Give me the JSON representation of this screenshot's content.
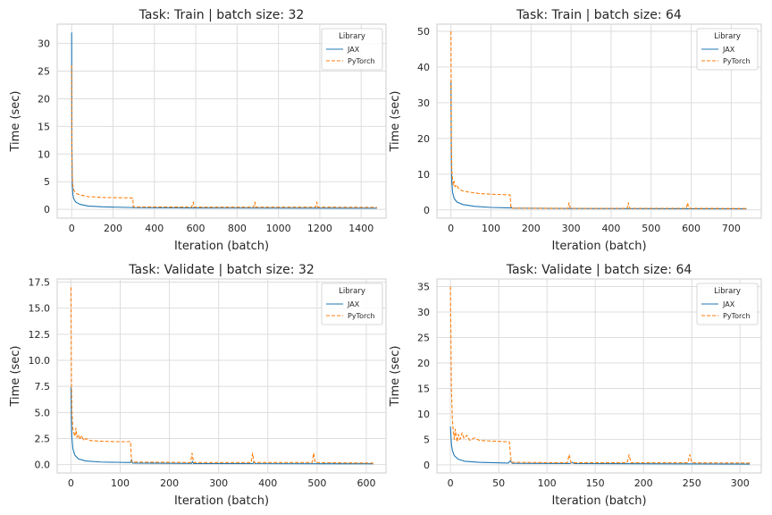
{
  "chart_data": [
    {
      "type": "line",
      "title": "Task: Train | batch size: 32",
      "xlabel": "Iteration (batch)",
      "ylabel": "Time (sec)",
      "xlim": [
        -70,
        1520
      ],
      "ylim": [
        -1.6,
        33.5
      ],
      "xticks": [
        0,
        200,
        400,
        600,
        800,
        1000,
        1200,
        1400
      ],
      "yticks": [
        0,
        5,
        10,
        15,
        20,
        25,
        30
      ],
      "grid": true,
      "legend": {
        "title": "Library",
        "position": "top-right"
      },
      "series": [
        {
          "name": "JAX",
          "color": "#1f77b4",
          "dash": "solid",
          "points": [
            [
              0,
              32
            ],
            [
              1,
              12
            ],
            [
              3,
              4.5
            ],
            [
              6,
              2.6
            ],
            [
              10,
              1.9
            ],
            [
              20,
              1.3
            ],
            [
              40,
              0.9
            ],
            [
              80,
              0.6
            ],
            [
              150,
              0.45
            ],
            [
              295,
              0.32
            ],
            [
              297,
              0.5
            ],
            [
              299,
              0.3
            ],
            [
              600,
              0.25
            ],
            [
              1476,
              0.2
            ]
          ]
        },
        {
          "name": "PyTorch",
          "color": "#ff7f0e",
          "dash": "dashed",
          "points": [
            [
              0,
              26
            ],
            [
              1,
              10
            ],
            [
              3,
              6
            ],
            [
              6,
              4.2
            ],
            [
              10,
              3.5
            ],
            [
              20,
              2.9
            ],
            [
              40,
              2.6
            ],
            [
              80,
              2.3
            ],
            [
              150,
              2.15
            ],
            [
              296,
              2.05
            ],
            [
              298,
              0.45
            ],
            [
              580,
              0.4
            ],
            [
              588,
              1.3
            ],
            [
              592,
              0.4
            ],
            [
              880,
              0.4
            ],
            [
              886,
              1.3
            ],
            [
              890,
              0.4
            ],
            [
              1180,
              0.4
            ],
            [
              1186,
              1.3
            ],
            [
              1190,
              0.4
            ],
            [
              1476,
              0.35
            ]
          ]
        }
      ]
    },
    {
      "type": "line",
      "title": "Task: Train | batch size: 64",
      "xlabel": "Iteration (batch)",
      "ylabel": "Time (sec)",
      "xlim": [
        -35,
        775
      ],
      "ylim": [
        -2.3,
        52
      ],
      "xticks": [
        0,
        100,
        200,
        300,
        400,
        500,
        600,
        700
      ],
      "yticks": [
        0,
        10,
        20,
        30,
        40,
        50
      ],
      "grid": true,
      "legend": {
        "title": "Library",
        "position": "top-right"
      },
      "series": [
        {
          "name": "JAX",
          "color": "#1f77b4",
          "dash": "solid",
          "points": [
            [
              0,
              36
            ],
            [
              1,
              15
            ],
            [
              2,
              8
            ],
            [
              4,
              5
            ],
            [
              8,
              3.2
            ],
            [
              15,
              2.2
            ],
            [
              30,
              1.5
            ],
            [
              60,
              1.0
            ],
            [
              100,
              0.7
            ],
            [
              148,
              0.55
            ],
            [
              150,
              0.9
            ],
            [
              152,
              0.5
            ],
            [
              300,
              0.4
            ],
            [
              738,
              0.3
            ]
          ]
        },
        {
          "name": "PyTorch",
          "color": "#ff7f0e",
          "dash": "dashed",
          "points": [
            [
              0,
              50
            ],
            [
              1,
              20
            ],
            [
              2,
              11
            ],
            [
              4,
              8.5
            ],
            [
              6,
              7
            ],
            [
              8,
              8
            ],
            [
              10,
              6.5
            ],
            [
              14,
              7
            ],
            [
              20,
              5.8
            ],
            [
              30,
              5.3
            ],
            [
              45,
              5
            ],
            [
              70,
              4.6
            ],
            [
              100,
              4.4
            ],
            [
              148,
              4.2
            ],
            [
              150,
              0.5
            ],
            [
              292,
              0.45
            ],
            [
              295,
              2
            ],
            [
              298,
              0.45
            ],
            [
              440,
              0.45
            ],
            [
              443,
              2
            ],
            [
              446,
              0.45
            ],
            [
              588,
              0.45
            ],
            [
              591,
              2
            ],
            [
              594,
              0.45
            ],
            [
              738,
              0.4
            ]
          ]
        }
      ]
    },
    {
      "type": "line",
      "title": "Task: Validate | batch size: 32",
      "xlabel": "Iteration (batch)",
      "ylabel": "Time (sec)",
      "xlim": [
        -28,
        640
      ],
      "ylim": [
        -0.8,
        17.8
      ],
      "xticks": [
        0,
        100,
        200,
        300,
        400,
        500,
        600
      ],
      "yticks": [
        0,
        2.5,
        5,
        7.5,
        10,
        12.5,
        15,
        17.5
      ],
      "ytick_labels": [
        "0.0",
        "2.5",
        "5.0",
        "7.5",
        "10.0",
        "12.5",
        "15.0",
        "17.5"
      ],
      "grid": true,
      "legend": {
        "title": "Library",
        "position": "top-right"
      },
      "series": [
        {
          "name": "JAX",
          "color": "#1f77b4",
          "dash": "solid",
          "points": [
            [
              0,
              7.4
            ],
            [
              1,
              4
            ],
            [
              2,
              2.5
            ],
            [
              4,
              1.5
            ],
            [
              8,
              0.9
            ],
            [
              15,
              0.55
            ],
            [
              30,
              0.35
            ],
            [
              60,
              0.25
            ],
            [
              121,
              0.2
            ],
            [
              123,
              0.5
            ],
            [
              125,
              0.15
            ],
            [
              245,
              0.12
            ],
            [
              247,
              0.3
            ],
            [
              249,
              0.1
            ],
            [
              370,
              0.1
            ],
            [
              372,
              0.3
            ],
            [
              374,
              0.1
            ],
            [
              614,
              0.08
            ]
          ]
        },
        {
          "name": "PyTorch",
          "color": "#ff7f0e",
          "dash": "dashed",
          "points": [
            [
              0,
              17
            ],
            [
              1,
              8
            ],
            [
              2,
              5
            ],
            [
              4,
              3.4
            ],
            [
              6,
              3
            ],
            [
              8,
              2.7
            ],
            [
              10,
              3.5
            ],
            [
              12,
              2.6
            ],
            [
              15,
              2.9
            ],
            [
              18,
              2.4
            ],
            [
              22,
              2.8
            ],
            [
              26,
              2.3
            ],
            [
              30,
              2.5
            ],
            [
              40,
              2.3
            ],
            [
              60,
              2.25
            ],
            [
              90,
              2.2
            ],
            [
              121,
              2.2
            ],
            [
              123,
              0.25
            ],
            [
              243,
              0.2
            ],
            [
              246,
              1.1
            ],
            [
              249,
              0.2
            ],
            [
              366,
              0.2
            ],
            [
              369,
              1.1
            ],
            [
              372,
              0.2
            ],
            [
              490,
              0.2
            ],
            [
              493,
              1.1
            ],
            [
              496,
              0.2
            ],
            [
              614,
              0.15
            ]
          ]
        }
      ]
    },
    {
      "type": "line",
      "title": "Task: Validate | batch size: 64",
      "xlabel": "Iteration (batch)",
      "ylabel": "Time (sec)",
      "xlim": [
        -14,
        322
      ],
      "ylim": [
        -1.6,
        36.5
      ],
      "xticks": [
        0,
        50,
        100,
        150,
        200,
        250,
        300
      ],
      "yticks": [
        0,
        5,
        10,
        15,
        20,
        25,
        30,
        35
      ],
      "grid": true,
      "legend": {
        "title": "Library",
        "position": "top-right"
      },
      "series": [
        {
          "name": "JAX",
          "color": "#1f77b4",
          "dash": "solid",
          "points": [
            [
              0,
              7.5
            ],
            [
              1,
              4
            ],
            [
              2,
              2.8
            ],
            [
              4,
              1.8
            ],
            [
              8,
              1.1
            ],
            [
              15,
              0.7
            ],
            [
              30,
              0.5
            ],
            [
              60,
              0.35
            ],
            [
              62,
              0.8
            ],
            [
              64,
              0.3
            ],
            [
              124,
              0.25
            ],
            [
              126,
              0.5
            ],
            [
              128,
              0.25
            ],
            [
              310,
              0.15
            ]
          ]
        },
        {
          "name": "PyTorch",
          "color": "#ff7f0e",
          "dash": "dashed",
          "points": [
            [
              0,
              35
            ],
            [
              1,
              15
            ],
            [
              2,
              9
            ],
            [
              3,
              6.5
            ],
            [
              4,
              5
            ],
            [
              5,
              7
            ],
            [
              6,
              5.5
            ],
            [
              7,
              4.5
            ],
            [
              8,
              6
            ],
            [
              10,
              5
            ],
            [
              12,
              6.3
            ],
            [
              14,
              5.2
            ],
            [
              17,
              5.8
            ],
            [
              20,
              4.8
            ],
            [
              25,
              5.3
            ],
            [
              30,
              4.8
            ],
            [
              40,
              4.7
            ],
            [
              50,
              4.6
            ],
            [
              61,
              4.5
            ],
            [
              63,
              0.5
            ],
            [
              121,
              0.4
            ],
            [
              123,
              2
            ],
            [
              125,
              0.4
            ],
            [
              183,
              0.4
            ],
            [
              185,
              2
            ],
            [
              187,
              0.4
            ],
            [
              246,
              0.4
            ],
            [
              248,
              2
            ],
            [
              250,
              0.4
            ],
            [
              310,
              0.35
            ]
          ]
        }
      ]
    }
  ]
}
